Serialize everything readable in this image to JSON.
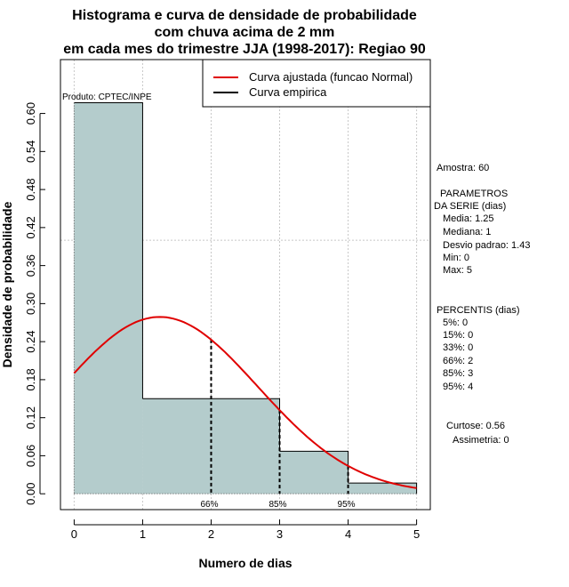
{
  "chart_data": {
    "type": "bar",
    "title_lines": [
      "Histograma e curva de densidade de probabilidade",
      "com chuva acima de 2 mm",
      "em cada mes do trimestre JJA (1998-2017): Regiao 90"
    ],
    "xlabel": "Numero de dias",
    "ylabel": "Densidade de probabilidade",
    "xlim": [
      -0.2,
      5.2
    ],
    "ylim": [
      -0.025,
      0.685
    ],
    "x_ticks": [
      0,
      1,
      2,
      3,
      4,
      5
    ],
    "y_ticks": [
      0.0,
      0.06,
      0.12,
      0.18,
      0.24,
      0.3,
      0.36,
      0.42,
      0.48,
      0.54,
      0.6
    ],
    "y_tick_labels": [
      "0.00",
      "0.06",
      "0.12",
      "0.18",
      "0.24",
      "0.30",
      "0.36",
      "0.42",
      "0.48",
      "0.54",
      "0.60"
    ],
    "bins": [
      {
        "from": 0,
        "to": 1,
        "density": 0.617
      },
      {
        "from": 1,
        "to": 2,
        "density": 0.15
      },
      {
        "from": 2,
        "to": 3,
        "density": 0.15
      },
      {
        "from": 3,
        "to": 4,
        "density": 0.067
      },
      {
        "from": 4,
        "to": 5,
        "density": 0.017
      }
    ],
    "normal_fit": {
      "mean": 1.25,
      "sd": 1.43,
      "from": 0,
      "to": 5
    },
    "percentile_lines": [
      {
        "x": 2,
        "label": "66%"
      },
      {
        "x": 3,
        "label": "85%"
      },
      {
        "x": 4,
        "label": "95%"
      }
    ],
    "reference_hline": 0.4,
    "legend": {
      "position": "top-right",
      "entries": [
        {
          "label": "Curva ajustada (funcao Normal)",
          "color": "#e00000"
        },
        {
          "label": "Curva empirica",
          "color": "#000000"
        }
      ]
    },
    "bar_color": "#b4cccc",
    "curve_color": "#e00000",
    "grid": true
  },
  "producer_label": "Produto: CPTEC/INPE",
  "stats": {
    "amostra": "Amostra: 60",
    "params_title_1": "PARAMETROS",
    "params_title_2": "DA SERIE (dias)",
    "media": "Media: 1.25",
    "mediana": "Mediana: 1",
    "desvio": "Desvio padrao: 1.43",
    "min": "Min: 0",
    "max": "Max: 5",
    "percentis_title": "PERCENTIS (dias)",
    "p5": "5%: 0",
    "p15": "15%: 0",
    "p33": "33%: 0",
    "p66": "66%: 2",
    "p85": "85%: 3",
    "p95": "95%: 4",
    "curtose": "Curtose: 0.56",
    "assimetria": "Assimetria: 0"
  }
}
